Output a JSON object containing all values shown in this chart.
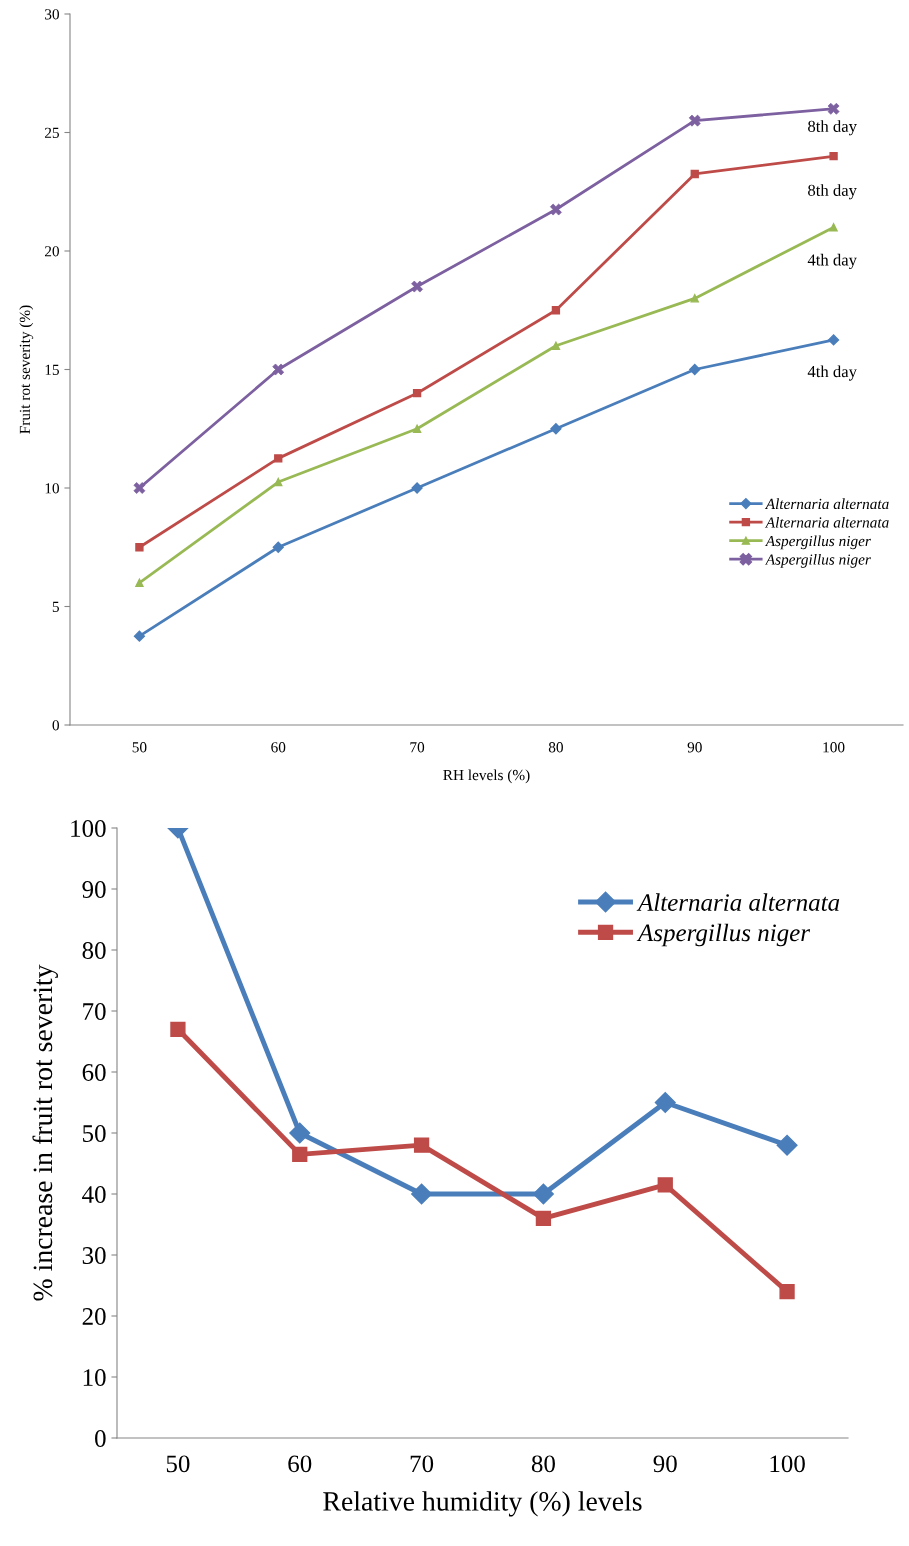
{
  "chart_data": [
    {
      "type": "line",
      "xlabel": "RH levels (%)",
      "ylabel": "Fruit rot severity (%)",
      "categories": [
        "50",
        "60",
        "70",
        "80",
        "90",
        "100"
      ],
      "series": [
        {
          "name": "Alternaria alternata",
          "color": "#4a7ebb",
          "marker": "diamond",
          "values": [
            3.75,
            7.5,
            10,
            12.5,
            15,
            16.25
          ]
        },
        {
          "name": "Alternaria alternata",
          "color": "#be4b48",
          "marker": "square",
          "values": [
            7.5,
            11.25,
            14,
            17.5,
            23.25,
            24
          ]
        },
        {
          "name": "Aspergillus niger",
          "color": "#98b954",
          "marker": "triangle",
          "values": [
            6,
            10.25,
            12.5,
            16,
            18,
            21
          ]
        },
        {
          "name": "Aspergillus niger",
          "color": "#7d60a0",
          "marker": "cross",
          "values": [
            10,
            15,
            18.5,
            21.75,
            25.5,
            26
          ]
        }
      ],
      "annotations": [
        "8th day",
        "8th day",
        "4th day",
        "4th day"
      ],
      "ylim": [
        0,
        30
      ],
      "yticks": [
        0,
        5,
        10,
        15,
        20,
        25,
        30
      ],
      "grid": false,
      "legend": "right"
    },
    {
      "type": "line",
      "xlabel": "Relative humidity (%) levels",
      "ylabel": "% increase in fruit rot severity",
      "categories": [
        "50",
        "60",
        "70",
        "80",
        "90",
        "100"
      ],
      "series": [
        {
          "name": "Alternaria alternata",
          "color": "#4a7ebb",
          "marker": "diamond",
          "values": [
            100,
            50,
            40,
            40,
            55,
            48
          ]
        },
        {
          "name": "Aspergillus niger",
          "color": "#be4b48",
          "marker": "square",
          "values": [
            67,
            46.5,
            48,
            36,
            41.5,
            24
          ]
        }
      ],
      "ylim": [
        0,
        100
      ],
      "yticks": [
        0,
        10,
        20,
        30,
        40,
        50,
        60,
        70,
        80,
        90,
        100
      ],
      "grid": false,
      "legend": "top right"
    }
  ]
}
